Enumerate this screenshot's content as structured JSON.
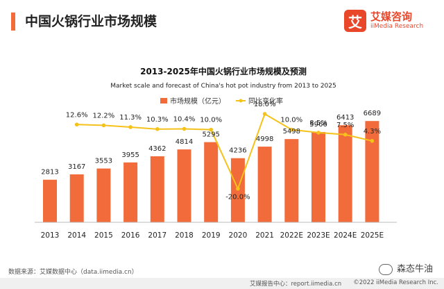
{
  "header": {
    "title": "中国火锅行业市场规模",
    "brand_name": "艾媒咨询",
    "brand_sub": "iiMedia Research",
    "brand_logo_char": "艾"
  },
  "chart_data": {
    "type": "bar",
    "title": "2013-2025年中国火锅行业市场规模及预测",
    "subtitle": "Market scale and forecast of China's hot pot industry from 2013 to 2025",
    "categories": [
      "2013",
      "2014",
      "2015",
      "2016",
      "2017",
      "2018",
      "2019",
      "2020",
      "2021",
      "2022E",
      "2023E",
      "2024E",
      "2025E"
    ],
    "series": [
      {
        "name": "市场规模（亿元）",
        "type": "bar",
        "color": "#f26b3a",
        "values": [
          2813,
          3167,
          3553,
          3955,
          4362,
          4814,
          5295,
          4236,
          4998,
          5498,
          5966,
          6413,
          6689
        ],
        "labels": [
          "2813",
          "3167",
          "3553",
          "3955",
          "4362",
          "4814",
          "5295",
          "4236",
          "4998",
          "5498",
          "5966",
          "6413",
          "6689"
        ]
      },
      {
        "name": "同比变化率",
        "type": "line",
        "color": "#f5c21b",
        "values": [
          null,
          12.6,
          12.2,
          11.3,
          10.3,
          10.4,
          10.0,
          -20.0,
          18.0,
          10.0,
          8.5,
          7.5,
          4.3
        ],
        "labels": [
          "",
          "12.6%",
          "12.2%",
          "11.3%",
          "10.3%",
          "10.4%",
          "10.0%",
          "-20.0%",
          "18.0%",
          "10.0%",
          "8.5%",
          "7.5%",
          "4.3%"
        ]
      }
    ],
    "ylim_bar": [
      0,
      7800
    ],
    "ylim_line": [
      -30,
      30
    ],
    "legend_position": "top-center",
    "grid": false
  },
  "footer": {
    "source": "数据来源：艾媒数据中心（data.iimedia.cn）",
    "left": "艾媒报告中心：report.iimedia.cn",
    "right": "©2022  iiMedia Research  Inc.",
    "watermark": "森态牛油"
  }
}
